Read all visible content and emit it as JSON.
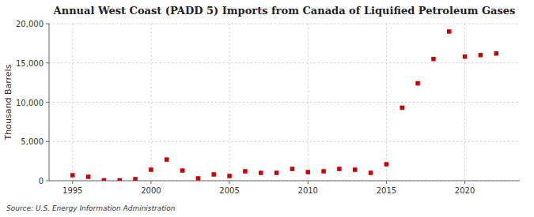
{
  "chart_data": {
    "type": "scatter",
    "title": "Annual West Coast (PADD 5) Imports from Canada of Liquified Petroleum Gases",
    "ylabel": "Thousand Barrels",
    "annotations": [
      "Source: U.S. Energy Information Administration"
    ],
    "x": [
      1995,
      1996,
      1997,
      1998,
      1999,
      2000,
      2001,
      2002,
      2003,
      2004,
      2005,
      2006,
      2007,
      2008,
      2009,
      2010,
      2011,
      2012,
      2013,
      2014,
      2015,
      2016,
      2017,
      2018,
      2019,
      2020,
      2021,
      2022
    ],
    "values": [
      700,
      500,
      50,
      50,
      200,
      1400,
      2700,
      1300,
      300,
      800,
      600,
      1200,
      1000,
      1000,
      1500,
      1100,
      1200,
      1500,
      1400,
      1000,
      2100,
      9300,
      12400,
      15500,
      19000,
      15800,
      16000,
      16200
    ],
    "color": "#cc0000",
    "marker": "square",
    "grid": true,
    "xlim": [
      1993.5,
      2023.5
    ],
    "xticks": [
      1995,
      2000,
      2005,
      2010,
      2015,
      2020
    ],
    "ylim": [
      0,
      20000
    ],
    "yticks": [
      0,
      {
        "value": 5000,
        "label": "5,000"
      },
      {
        "value": 10000,
        "label": "10,000"
      },
      {
        "value": 15000,
        "label": "15,000"
      },
      {
        "value": 20000,
        "label": "20,000"
      }
    ]
  }
}
